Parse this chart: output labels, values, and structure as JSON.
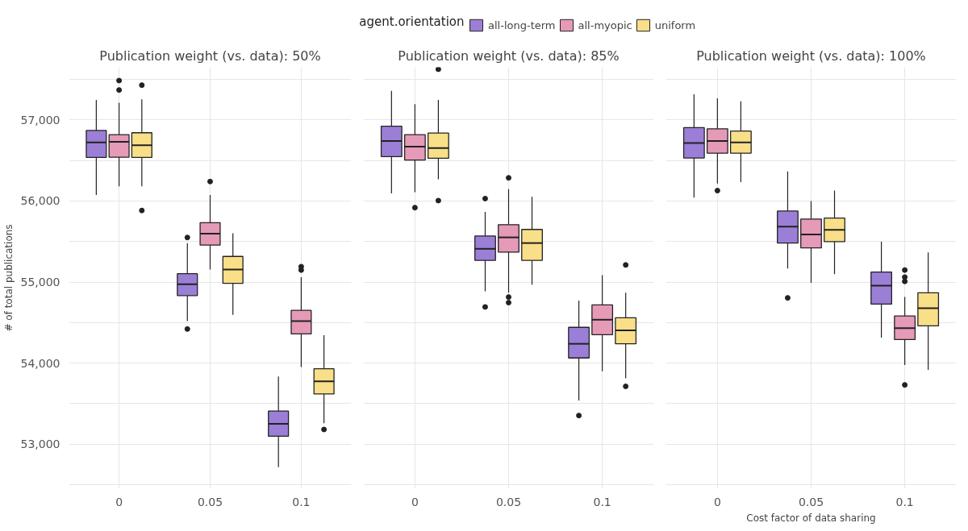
{
  "chart_data": [
    {
      "type": "box",
      "title": "Publication weight (vs. data): 50%",
      "ylabel": "# of total publications",
      "legend_title": "agent.orientation",
      "legend": "top",
      "grid": true,
      "categories": [
        "0",
        "0.05",
        "0.1"
      ],
      "ylim": [
        52450,
        57650
      ],
      "yticks": [
        {
          "value": 52500,
          "label": null
        },
        {
          "value": 53000,
          "label": "53,000"
        },
        {
          "value": 53500,
          "label": null
        },
        {
          "value": 54000,
          "label": "54,000"
        },
        {
          "value": 54500,
          "label": null
        },
        {
          "value": 55000,
          "label": "55,000"
        },
        {
          "value": 55500,
          "label": null
        },
        {
          "value": 56000,
          "label": "56,000"
        },
        {
          "value": 56500,
          "label": null
        },
        {
          "value": 57000,
          "label": "57,000"
        },
        {
          "value": 57500,
          "label": null
        }
      ],
      "series": [
        {
          "name": "all-long-term",
          "color": "#9b7fd6",
          "boxes": [
            {
              "low": 56075,
              "q1": 56537,
              "median": 56723,
              "q3": 56870,
              "high": 57248
            },
            {
              "low": 54518,
              "q1": 54833,
              "median": 54973,
              "q3": 55103,
              "high": 55480,
              "outliers": [
                55550,
                54420
              ]
            },
            {
              "low": 52715,
              "q1": 53097,
              "median": 53251,
              "q3": 53409,
              "high": 53835
            }
          ]
        },
        {
          "name": "all-myopic",
          "color": "#e59ab7",
          "boxes": [
            {
              "low": 56180,
              "q1": 56541,
              "median": 56730,
              "q3": 56818,
              "high": 57213,
              "outliers": [
                57486,
                57370
              ]
            },
            {
              "low": 55155,
              "q1": 55456,
              "median": 55596,
              "q3": 55733,
              "high": 56075,
              "outliers": [
                56240
              ]
            },
            {
              "low": 53951,
              "q1": 54360,
              "median": 54518,
              "q3": 54651,
              "high": 55060,
              "outliers": [
                55190,
                55148
              ]
            }
          ]
        },
        {
          "name": "uniform",
          "color": "#f8df88",
          "boxes": [
            {
              "low": 56180,
              "q1": 56537,
              "median": 56688,
              "q3": 56842,
              "high": 57255,
              "outliers": [
                57430,
                55883
              ]
            },
            {
              "low": 54595,
              "q1": 54984,
              "median": 55155,
              "q3": 55316,
              "high": 55603
            },
            {
              "low": 53258,
              "q1": 53619,
              "median": 53776,
              "q3": 53930,
              "high": 54343,
              "outliers": [
                53181
              ]
            }
          ]
        }
      ]
    },
    {
      "type": "box",
      "title": "Publication weight (vs. data): 85%",
      "grid": true,
      "tick_labels": "x",
      "categories": [
        "0",
        "0.05",
        "0.1"
      ],
      "ylim": [
        52450,
        57650
      ],
      "yticks": [
        {
          "value": 52500,
          "label": null
        },
        {
          "value": 53000,
          "label": null
        },
        {
          "value": 53500,
          "label": null
        },
        {
          "value": 54000,
          "label": null
        },
        {
          "value": 54500,
          "label": null
        },
        {
          "value": 55000,
          "label": null
        },
        {
          "value": 55500,
          "label": null
        },
        {
          "value": 56000,
          "label": null
        },
        {
          "value": 56500,
          "label": null
        },
        {
          "value": 57000,
          "label": null
        },
        {
          "value": 57500,
          "label": null
        }
      ],
      "series": [
        {
          "color": "#9b7fd6",
          "boxes": [
            {
              "low": 56093,
              "q1": 56548,
              "median": 56741,
              "q3": 56923,
              "high": 57360
            },
            {
              "low": 54886,
              "q1": 55267,
              "median": 55410,
              "q3": 55568,
              "high": 55866,
              "outliers": [
                56030,
                54693
              ]
            },
            {
              "low": 53538,
              "q1": 54063,
              "median": 54238,
              "q3": 54441,
              "high": 54770,
              "outliers": [
                53353
              ]
            }
          ]
        },
        {
          "color": "#e59ab7",
          "boxes": [
            {
              "low": 56110,
              "q1": 56506,
              "median": 56671,
              "q3": 56818,
              "high": 57196,
              "outliers": [
                55918
              ]
            },
            {
              "low": 54868,
              "q1": 55369,
              "median": 55551,
              "q3": 55708,
              "high": 56146,
              "outliers": [
                56286,
                54815,
                54746
              ]
            },
            {
              "low": 53899,
              "q1": 54350,
              "median": 54535,
              "q3": 54718,
              "high": 55085
            }
          ]
        },
        {
          "color": "#f8df88",
          "boxes": [
            {
              "low": 56268,
              "q1": 56527,
              "median": 56653,
              "q3": 56839,
              "high": 57248,
              "outliers": [
                57626,
                56005
              ]
            },
            {
              "low": 54966,
              "q1": 55267,
              "median": 55481,
              "q3": 55649,
              "high": 56051
            },
            {
              "low": 53811,
              "q1": 54238,
              "median": 54403,
              "q3": 54560,
              "high": 54868,
              "outliers": [
                55211,
                53713
              ]
            }
          ]
        }
      ]
    },
    {
      "type": "box",
      "title": "Publication weight (vs. data): 100%",
      "xlabel": "Cost factor of data sharing",
      "grid": true,
      "tick_labels": "x",
      "categories": [
        "0",
        "0.05",
        "0.1"
      ],
      "ylim": [
        52450,
        57650
      ],
      "yticks": [
        {
          "value": 52500,
          "label": null
        },
        {
          "value": 53000,
          "label": null
        },
        {
          "value": 53500,
          "label": null
        },
        {
          "value": 54000,
          "label": null
        },
        {
          "value": 54500,
          "label": null
        },
        {
          "value": 55000,
          "label": null
        },
        {
          "value": 55500,
          "label": null
        },
        {
          "value": 56000,
          "label": null
        },
        {
          "value": 56500,
          "label": null
        },
        {
          "value": 57000,
          "label": null
        },
        {
          "value": 57500,
          "label": null
        }
      ],
      "series": [
        {
          "color": "#9b7fd6",
          "boxes": [
            {
              "low": 56041,
              "q1": 56531,
              "median": 56716,
              "q3": 56905,
              "high": 57318
            },
            {
              "low": 55166,
              "q1": 55481,
              "median": 55684,
              "q3": 55876,
              "high": 56366,
              "outliers": [
                54805
              ]
            },
            {
              "low": 54315,
              "q1": 54728,
              "median": 54956,
              "q3": 55124,
              "high": 55498
            }
          ]
        },
        {
          "color": "#e59ab7",
          "boxes": [
            {
              "low": 56216,
              "q1": 56590,
              "median": 56741,
              "q3": 56891,
              "high": 57266,
              "outliers": [
                56128
              ]
            },
            {
              "low": 54991,
              "q1": 55421,
              "median": 55586,
              "q3": 55778,
              "high": 56000
            },
            {
              "low": 53976,
              "q1": 54290,
              "median": 54430,
              "q3": 54581,
              "high": 54816,
              "outliers": [
                55148,
                55061,
                55008,
                53731
              ]
            }
          ]
        },
        {
          "color": "#f8df88",
          "boxes": [
            {
              "low": 56233,
              "q1": 56590,
              "median": 56723,
              "q3": 56863,
              "high": 57231
            },
            {
              "low": 55096,
              "q1": 55498,
              "median": 55645,
              "q3": 55789,
              "high": 56128
            },
            {
              "low": 53916,
              "q1": 54459,
              "median": 54676,
              "q3": 54868,
              "high": 55365
            }
          ]
        }
      ]
    }
  ]
}
